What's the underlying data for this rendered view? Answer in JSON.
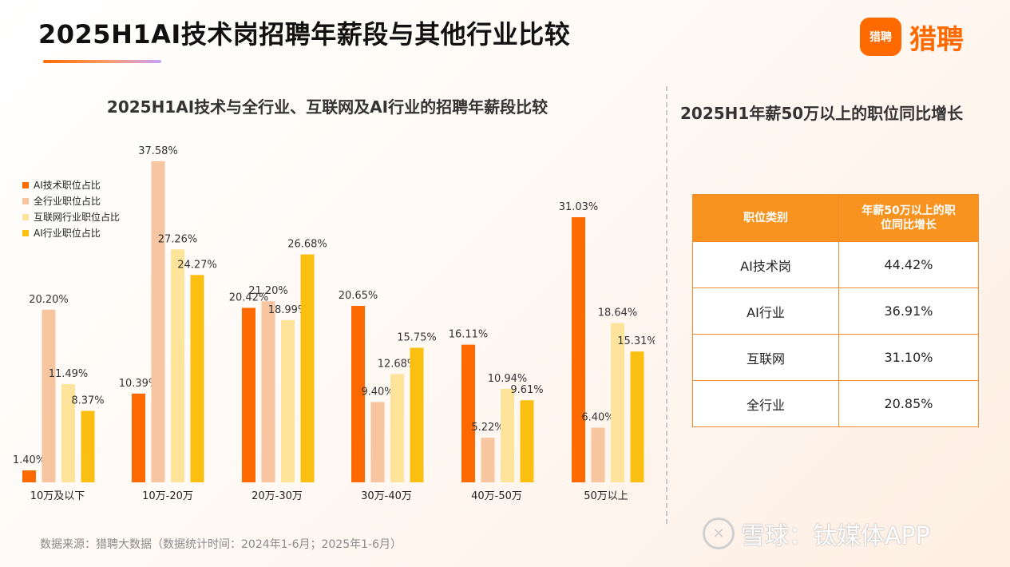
{
  "header": {
    "title": "2025H1AI技术岗招聘年薪段与其他行业比较",
    "logo_mark": "猎聘",
    "logo_text": "猎聘"
  },
  "chart_data": {
    "type": "bar",
    "title": "2025H1AI技术与全行业、互联网及AI行业的招聘年薪段比较",
    "categories": [
      "10万及以下",
      "10万-20万",
      "20万-30万",
      "30万-40万",
      "40万-50万",
      "50万以上"
    ],
    "series": [
      {
        "name": "AI技术职位占比",
        "color": "#ff6a00",
        "values": [
          1.4,
          10.39,
          20.42,
          20.65,
          16.11,
          31.03
        ],
        "labels": [
          "1.40%",
          "10.39%",
          "20.42%",
          "20.65%",
          "16.11%",
          "31.03%"
        ]
      },
      {
        "name": "全行业职位占比",
        "color": "#f7c5a0",
        "values": [
          20.2,
          37.58,
          21.2,
          9.4,
          5.22,
          6.4
        ],
        "labels": [
          "20.20%",
          "37.58%",
          "21.20%",
          "9.40%",
          "5.22%",
          "6.40%"
        ]
      },
      {
        "name": "互联网行业职位占比",
        "color": "#fde49a",
        "values": [
          11.49,
          27.26,
          18.99,
          12.68,
          10.94,
          18.64
        ],
        "labels": [
          "11.49%",
          "27.26%",
          "18.99%",
          "12.68%",
          "10.94%",
          "18.64%"
        ]
      },
      {
        "name": "AI行业职位占比",
        "color": "#fbbf12",
        "values": [
          8.37,
          24.27,
          26.68,
          15.75,
          9.61,
          15.31
        ],
        "labels": [
          "8.37%",
          "24.27%",
          "26.68%",
          "15.75%",
          "9.61%",
          "15.31%"
        ]
      }
    ],
    "ylim": [
      0,
      40
    ],
    "grid": false,
    "legend": "top-left"
  },
  "right_panel": {
    "title": "2025H1年薪50万以上的职位同比增长",
    "table": {
      "headers": [
        "职位类别",
        "年薪50万以上的职位同比增长"
      ],
      "rows": [
        [
          "AI技术岗",
          "44.42%"
        ],
        [
          "AI行业",
          "36.91%"
        ],
        [
          "互联网",
          "31.10%"
        ],
        [
          "全行业",
          "20.85%"
        ]
      ]
    }
  },
  "footer": {
    "source": "数据来源：猎聘大数据（数据统计时间：2024年1-6月；2025年1-6月）",
    "watermark": "雪球：钛媒体APP"
  }
}
